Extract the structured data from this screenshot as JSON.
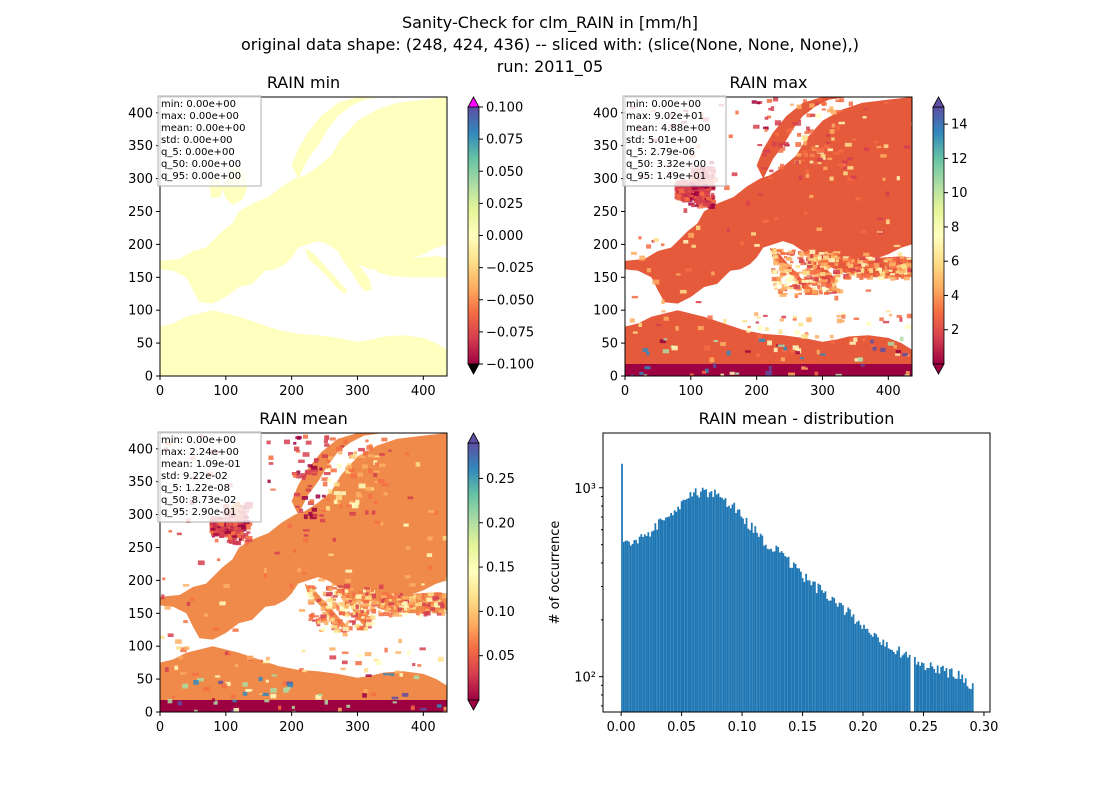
{
  "figure": {
    "title_line1": "Sanity-Check for clm_RAIN in [mm/h]",
    "title_line2": "original data shape: (248, 424, 436) -- sliced with: (slice(None, None, None),)",
    "title_line3": "run: 2011_05"
  },
  "colors": {
    "spectral": [
      "#9e0142",
      "#d53e4f",
      "#f46d43",
      "#fdae61",
      "#fee08b",
      "#ffffbf",
      "#e6f598",
      "#abdda4",
      "#66c2a5",
      "#3288bd",
      "#5e4fa2"
    ],
    "min_fill": "#ffffbf",
    "over": "#ff00ff",
    "under": "#000000",
    "hist_bar": "#1f77b4",
    "stats_box_border": "#b0b0b0"
  },
  "chart_data": [
    {
      "type": "heatmap",
      "title": "RAIN min",
      "xlim": [
        0,
        436
      ],
      "ylim": [
        0,
        424
      ],
      "x_ticks": [
        "0",
        "100",
        "200",
        "300",
        "400"
      ],
      "y_ticks": [
        "0",
        "50",
        "100",
        "150",
        "200",
        "250",
        "300",
        "350",
        "400"
      ],
      "colorbar": {
        "range": [
          -0.1,
          0.1
        ],
        "ticks": [
          "0.100",
          "0.075",
          "0.050",
          "0.025",
          "0.000",
          "−0.025",
          "−0.050",
          "−0.075",
          "−0.100"
        ]
      },
      "stats": [
        "min: 0.00e+00",
        "max: 0.00e+00",
        "mean: 0.00e+00",
        "std: 0.00e+00",
        "q_5: 0.00e+00",
        "q_50: 0.00e+00",
        "q_95: 0.00e+00"
      ]
    },
    {
      "type": "heatmap",
      "title": "RAIN max",
      "xlim": [
        0,
        436
      ],
      "ylim": [
        0,
        424
      ],
      "x_ticks": [
        "0",
        "100",
        "200",
        "300",
        "400"
      ],
      "y_ticks": [
        "0",
        "50",
        "100",
        "150",
        "200",
        "250",
        "300",
        "350",
        "400"
      ],
      "colorbar": {
        "range": [
          0,
          15
        ],
        "ticks": [
          "14",
          "12",
          "10",
          "8",
          "6",
          "4",
          "2"
        ]
      },
      "stats": [
        "min: 0.00e+00",
        "max: 9.02e+01",
        "mean: 4.88e+00",
        "std: 5.01e+00",
        "q_5: 2.79e-06",
        "q_50: 3.32e+00",
        "q_95: 1.49e+01"
      ]
    },
    {
      "type": "heatmap",
      "title": "RAIN mean",
      "xlim": [
        0,
        436
      ],
      "ylim": [
        0,
        424
      ],
      "x_ticks": [
        "0",
        "100",
        "200",
        "300",
        "400"
      ],
      "y_ticks": [
        "0",
        "50",
        "100",
        "150",
        "200",
        "250",
        "300",
        "350",
        "400"
      ],
      "colorbar": {
        "range": [
          0,
          0.29
        ],
        "ticks": [
          "0.25",
          "0.20",
          "0.15",
          "0.10",
          "0.05"
        ]
      },
      "stats": [
        "min: 0.00e+00",
        "max: 2.24e+00",
        "mean: 1.09e-01",
        "std: 9.22e-02",
        "q_5: 1.22e-08",
        "q_50: 8.73e-02",
        "q_95: 2.90e-01"
      ]
    },
    {
      "type": "bar",
      "title": "RAIN mean - distribution",
      "ylabel": "# of occurrence",
      "xlabel": "",
      "yscale": "log",
      "xlim": [
        -0.015,
        0.305
      ],
      "ylim": [
        65,
        1950
      ],
      "x_ticks": [
        "0.00",
        "0.05",
        "0.10",
        "0.15",
        "0.20",
        "0.25",
        "0.30"
      ],
      "y_ticks": [
        "10²",
        "10³"
      ],
      "bin_width": 0.00145,
      "bins_x": [
        0.0,
        0.01,
        0.02,
        0.03,
        0.04,
        0.05,
        0.06,
        0.07,
        0.08,
        0.09,
        0.1,
        0.11,
        0.12,
        0.13,
        0.14,
        0.15,
        0.16,
        0.17,
        0.18,
        0.19,
        0.2,
        0.21,
        0.22,
        0.23,
        0.24,
        0.25,
        0.26,
        0.27,
        0.28,
        0.29
      ],
      "bins_y": [
        1400,
        500,
        560,
        640,
        740,
        850,
        930,
        950,
        900,
        820,
        700,
        590,
        510,
        450,
        390,
        340,
        300,
        265,
        235,
        210,
        185,
        165,
        150,
        135,
        125,
        115,
        110,
        105,
        100,
        90
      ]
    }
  ]
}
